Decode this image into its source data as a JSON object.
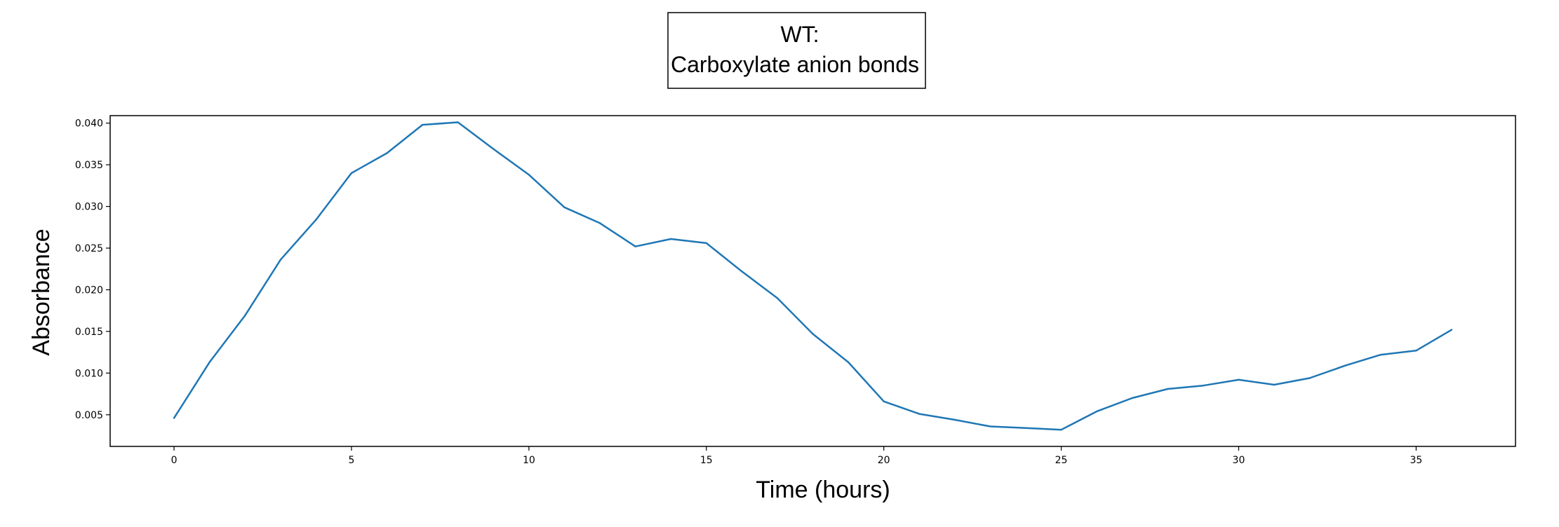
{
  "chart_data": {
    "type": "line",
    "title": [
      "WT:",
      "Carboxylate anion bonds"
    ],
    "xlabel": "Time (hours)",
    "ylabel": "Absorbance",
    "xlim": [
      -1.8,
      37.8
    ],
    "ylim": [
      0.0012,
      0.0409
    ],
    "xticks": [
      0,
      5,
      10,
      15,
      20,
      25,
      30,
      35
    ],
    "xtick_labels": [
      "0",
      "5",
      "10",
      "15",
      "20",
      "25",
      "30",
      "35"
    ],
    "yticks": [
      0.005,
      0.01,
      0.015,
      0.02,
      0.025,
      0.03,
      0.035,
      0.04
    ],
    "ytick_labels": [
      "0.005",
      "0.010",
      "0.015",
      "0.020",
      "0.025",
      "0.030",
      "0.035",
      "0.040"
    ],
    "grid": false,
    "series": [
      {
        "color": "#1f77b4",
        "x": [
          0,
          1,
          2,
          3,
          4,
          5,
          6,
          7,
          8,
          9,
          10,
          11,
          12,
          13,
          14,
          15,
          16,
          17,
          18,
          19,
          20,
          21,
          22,
          23,
          24,
          25,
          26,
          27,
          28,
          29,
          30,
          31,
          32,
          33,
          34,
          35,
          36
        ],
        "y": [
          0.0046,
          0.0113,
          0.0169,
          0.0236,
          0.0284,
          0.034,
          0.0364,
          0.0398,
          0.0401,
          0.0369,
          0.0338,
          0.0299,
          0.028,
          0.0252,
          0.0261,
          0.0256,
          0.0222,
          0.019,
          0.0147,
          0.0113,
          0.0066,
          0.0051,
          0.0044,
          0.0036,
          0.0034,
          0.0032,
          0.0054,
          0.007,
          0.0081,
          0.0085,
          0.0092,
          0.0086,
          0.0094,
          0.0109,
          0.0122,
          0.0127,
          0.0152
        ]
      }
    ]
  }
}
